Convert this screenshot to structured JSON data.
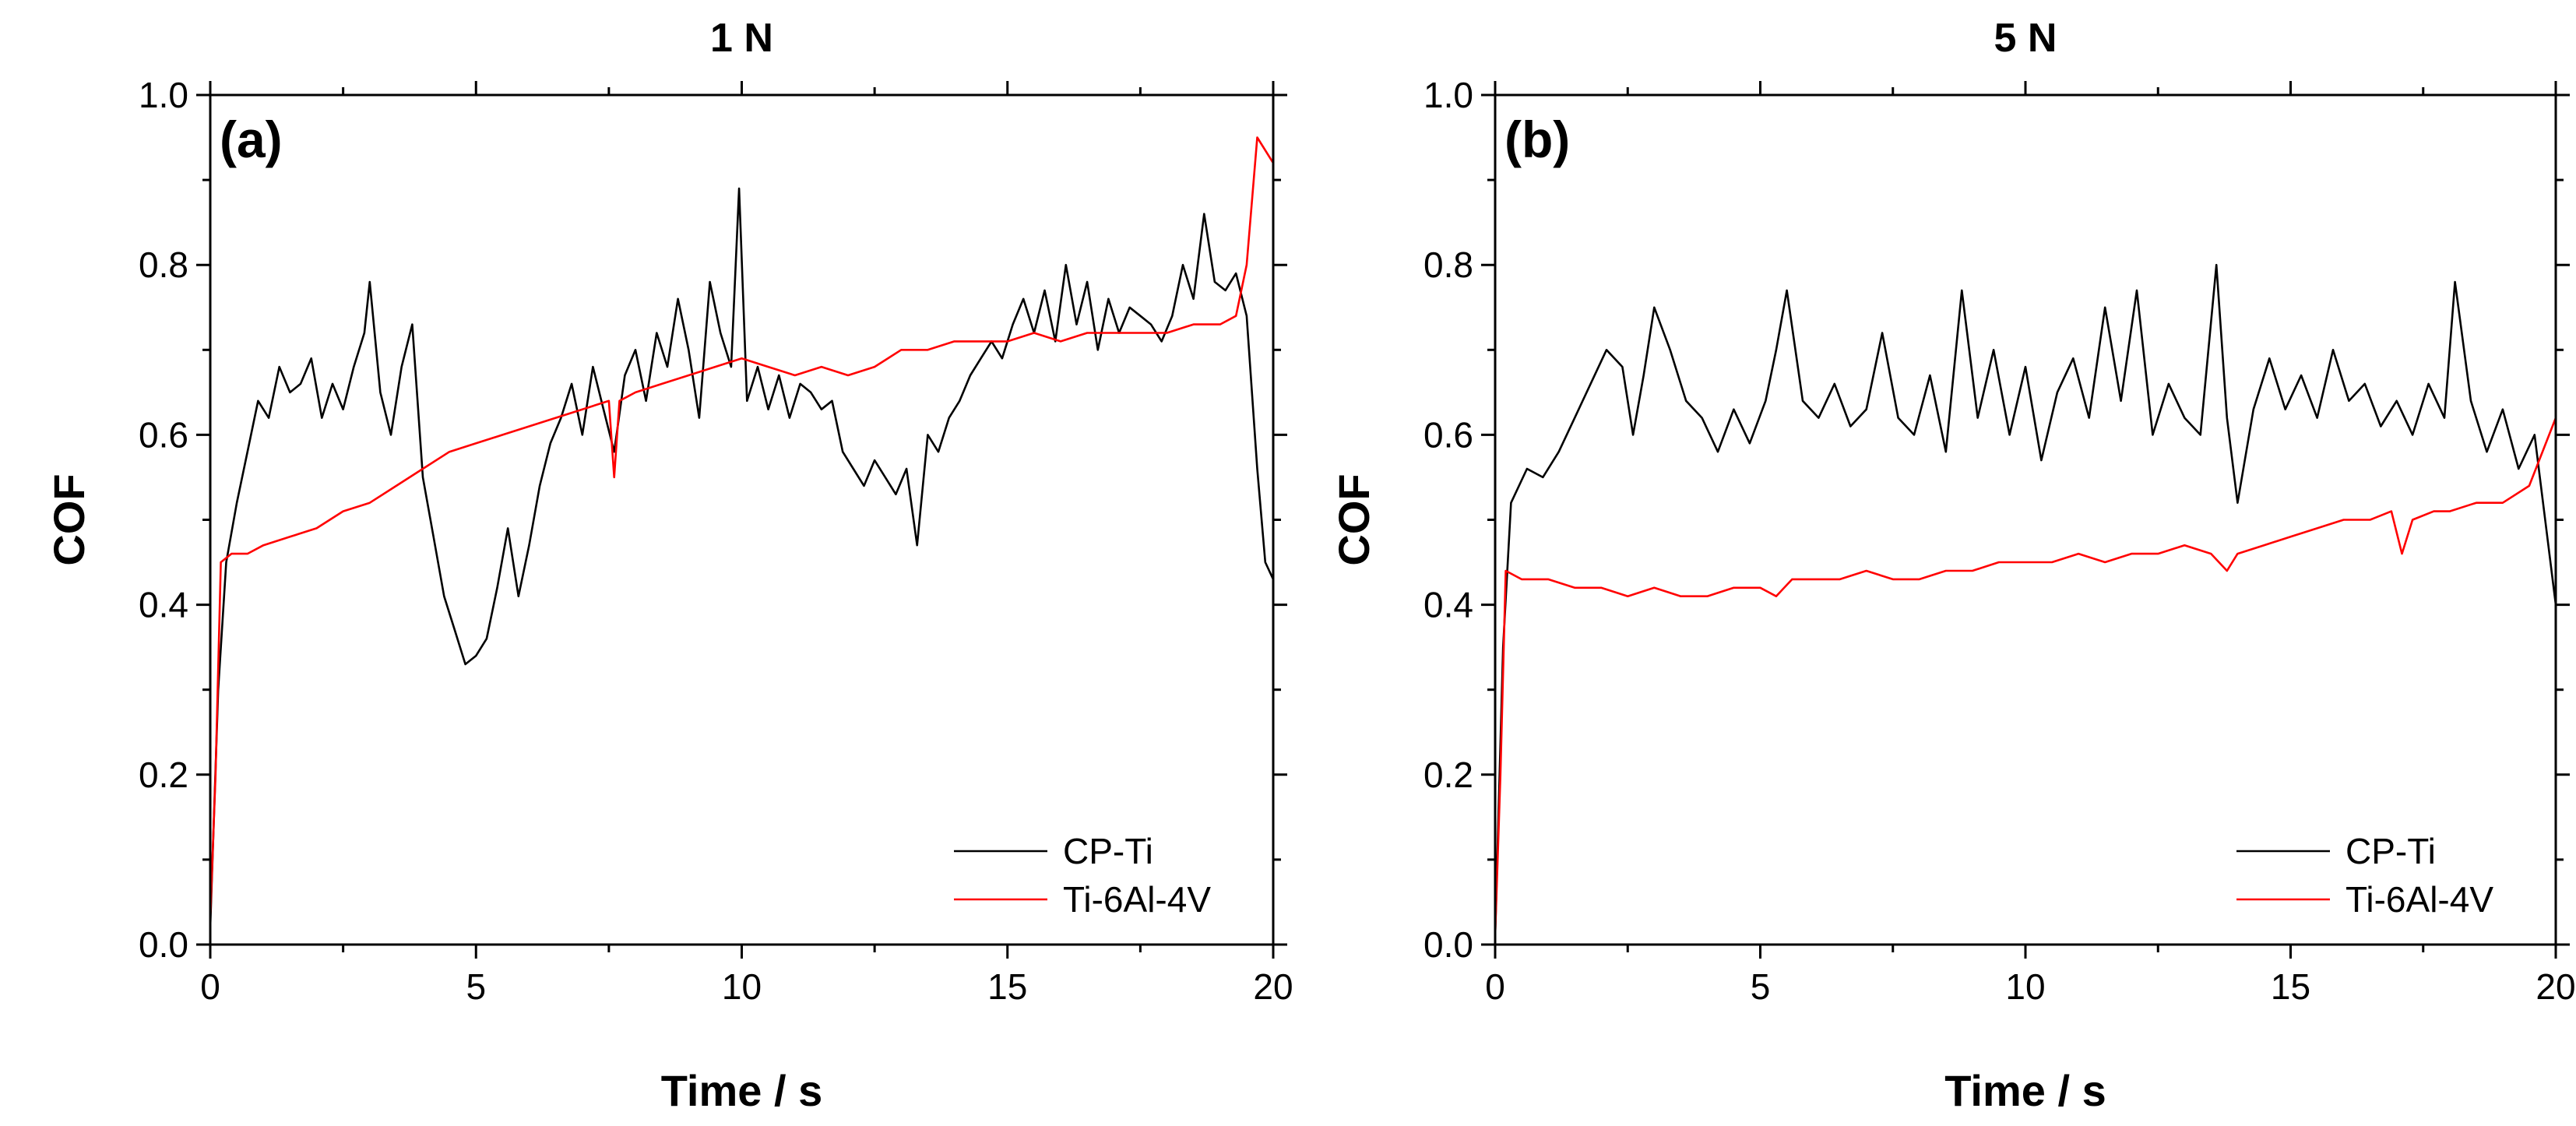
{
  "chart_data": [
    {
      "type": "line",
      "title": "1 N",
      "panel_label": "(a)",
      "xlabel": "Time / s",
      "ylabel": "COF",
      "xlim": [
        0,
        20
      ],
      "ylim": [
        0,
        1.0
      ],
      "xticks": [
        "0",
        "5",
        "10",
        "15",
        "20"
      ],
      "yticks": [
        "0.0",
        "0.2",
        "0.4",
        "0.6",
        "0.8",
        "1.0"
      ],
      "legend": [
        "CP-Ti",
        "Ti-6Al-4V"
      ],
      "legend_position": "bottom-right",
      "series": [
        {
          "name": "CP-Ti",
          "color": "#000000",
          "points": [
            [
              0,
              0.02
            ],
            [
              0.15,
              0.3
            ],
            [
              0.3,
              0.45
            ],
            [
              0.5,
              0.52
            ],
            [
              0.7,
              0.58
            ],
            [
              0.9,
              0.64
            ],
            [
              1.1,
              0.62
            ],
            [
              1.3,
              0.68
            ],
            [
              1.5,
              0.65
            ],
            [
              1.7,
              0.66
            ],
            [
              1.9,
              0.69
            ],
            [
              2.1,
              0.62
            ],
            [
              2.3,
              0.66
            ],
            [
              2.5,
              0.63
            ],
            [
              2.7,
              0.68
            ],
            [
              2.9,
              0.72
            ],
            [
              3.0,
              0.78
            ],
            [
              3.2,
              0.65
            ],
            [
              3.4,
              0.6
            ],
            [
              3.6,
              0.68
            ],
            [
              3.8,
              0.73
            ],
            [
              4.0,
              0.55
            ],
            [
              4.2,
              0.48
            ],
            [
              4.4,
              0.41
            ],
            [
              4.6,
              0.37
            ],
            [
              4.8,
              0.33
            ],
            [
              5.0,
              0.34
            ],
            [
              5.2,
              0.36
            ],
            [
              5.4,
              0.42
            ],
            [
              5.6,
              0.49
            ],
            [
              5.8,
              0.41
            ],
            [
              6.0,
              0.47
            ],
            [
              6.2,
              0.54
            ],
            [
              6.4,
              0.59
            ],
            [
              6.6,
              0.62
            ],
            [
              6.8,
              0.66
            ],
            [
              7.0,
              0.6
            ],
            [
              7.2,
              0.68
            ],
            [
              7.4,
              0.63
            ],
            [
              7.6,
              0.58
            ],
            [
              7.8,
              0.67
            ],
            [
              8.0,
              0.7
            ],
            [
              8.2,
              0.64
            ],
            [
              8.4,
              0.72
            ],
            [
              8.6,
              0.68
            ],
            [
              8.8,
              0.76
            ],
            [
              9.0,
              0.7
            ],
            [
              9.2,
              0.62
            ],
            [
              9.4,
              0.78
            ],
            [
              9.6,
              0.72
            ],
            [
              9.8,
              0.68
            ],
            [
              9.95,
              0.89
            ],
            [
              10.1,
              0.64
            ],
            [
              10.3,
              0.68
            ],
            [
              10.5,
              0.63
            ],
            [
              10.7,
              0.67
            ],
            [
              10.9,
              0.62
            ],
            [
              11.1,
              0.66
            ],
            [
              11.3,
              0.65
            ],
            [
              11.5,
              0.63
            ],
            [
              11.7,
              0.64
            ],
            [
              11.9,
              0.58
            ],
            [
              12.1,
              0.56
            ],
            [
              12.3,
              0.54
            ],
            [
              12.5,
              0.57
            ],
            [
              12.7,
              0.55
            ],
            [
              12.9,
              0.53
            ],
            [
              13.1,
              0.56
            ],
            [
              13.3,
              0.47
            ],
            [
              13.5,
              0.6
            ],
            [
              13.7,
              0.58
            ],
            [
              13.9,
              0.62
            ],
            [
              14.1,
              0.64
            ],
            [
              14.3,
              0.67
            ],
            [
              14.5,
              0.69
            ],
            [
              14.7,
              0.71
            ],
            [
              14.9,
              0.69
            ],
            [
              15.1,
              0.73
            ],
            [
              15.3,
              0.76
            ],
            [
              15.5,
              0.72
            ],
            [
              15.7,
              0.77
            ],
            [
              15.9,
              0.71
            ],
            [
              16.1,
              0.8
            ],
            [
              16.3,
              0.73
            ],
            [
              16.5,
              0.78
            ],
            [
              16.7,
              0.7
            ],
            [
              16.9,
              0.76
            ],
            [
              17.1,
              0.72
            ],
            [
              17.3,
              0.75
            ],
            [
              17.5,
              0.74
            ],
            [
              17.7,
              0.73
            ],
            [
              17.9,
              0.71
            ],
            [
              18.1,
              0.74
            ],
            [
              18.3,
              0.8
            ],
            [
              18.5,
              0.76
            ],
            [
              18.7,
              0.86
            ],
            [
              18.9,
              0.78
            ],
            [
              19.1,
              0.77
            ],
            [
              19.3,
              0.79
            ],
            [
              19.5,
              0.74
            ],
            [
              19.7,
              0.56
            ],
            [
              19.85,
              0.45
            ],
            [
              20.0,
              0.43
            ]
          ]
        },
        {
          "name": "Ti-6Al-4V",
          "color": "#ff0000",
          "points": [
            [
              0,
              0.03
            ],
            [
              0.1,
              0.2
            ],
            [
              0.2,
              0.45
            ],
            [
              0.4,
              0.46
            ],
            [
              0.7,
              0.46
            ],
            [
              1.0,
              0.47
            ],
            [
              1.5,
              0.48
            ],
            [
              2.0,
              0.49
            ],
            [
              2.5,
              0.51
            ],
            [
              3.0,
              0.52
            ],
            [
              3.5,
              0.54
            ],
            [
              4.0,
              0.56
            ],
            [
              4.5,
              0.58
            ],
            [
              5.0,
              0.59
            ],
            [
              5.5,
              0.6
            ],
            [
              6.0,
              0.61
            ],
            [
              6.5,
              0.62
            ],
            [
              7.0,
              0.63
            ],
            [
              7.5,
              0.64
            ],
            [
              7.6,
              0.55
            ],
            [
              7.7,
              0.64
            ],
            [
              8.0,
              0.65
            ],
            [
              8.5,
              0.66
            ],
            [
              9.0,
              0.67
            ],
            [
              9.5,
              0.68
            ],
            [
              10.0,
              0.69
            ],
            [
              10.5,
              0.68
            ],
            [
              11.0,
              0.67
            ],
            [
              11.5,
              0.68
            ],
            [
              12.0,
              0.67
            ],
            [
              12.5,
              0.68
            ],
            [
              13.0,
              0.7
            ],
            [
              13.5,
              0.7
            ],
            [
              14.0,
              0.71
            ],
            [
              14.5,
              0.71
            ],
            [
              15.0,
              0.71
            ],
            [
              15.5,
              0.72
            ],
            [
              16.0,
              0.71
            ],
            [
              16.5,
              0.72
            ],
            [
              17.0,
              0.72
            ],
            [
              17.5,
              0.72
            ],
            [
              18.0,
              0.72
            ],
            [
              18.5,
              0.73
            ],
            [
              19.0,
              0.73
            ],
            [
              19.3,
              0.74
            ],
            [
              19.5,
              0.8
            ],
            [
              19.7,
              0.95
            ],
            [
              20.0,
              0.92
            ]
          ]
        }
      ]
    },
    {
      "type": "line",
      "title": "5 N",
      "panel_label": "(b)",
      "xlabel": "Time / s",
      "ylabel": "COF",
      "xlim": [
        0,
        20
      ],
      "ylim": [
        0,
        1.0
      ],
      "xticks": [
        "0",
        "5",
        "10",
        "15",
        "20"
      ],
      "yticks": [
        "0.0",
        "0.2",
        "0.4",
        "0.6",
        "0.8",
        "1.0"
      ],
      "legend": [
        "CP-Ti",
        "Ti-6Al-4V"
      ],
      "legend_position": "bottom-right",
      "series": [
        {
          "name": "CP-Ti",
          "color": "#000000",
          "points": [
            [
              0,
              0.01
            ],
            [
              0.15,
              0.35
            ],
            [
              0.3,
              0.52
            ],
            [
              0.6,
              0.56
            ],
            [
              0.9,
              0.55
            ],
            [
              1.2,
              0.58
            ],
            [
              1.5,
              0.62
            ],
            [
              1.8,
              0.66
            ],
            [
              2.1,
              0.7
            ],
            [
              2.4,
              0.68
            ],
            [
              2.6,
              0.6
            ],
            [
              2.8,
              0.67
            ],
            [
              3.0,
              0.75
            ],
            [
              3.3,
              0.7
            ],
            [
              3.6,
              0.64
            ],
            [
              3.9,
              0.62
            ],
            [
              4.2,
              0.58
            ],
            [
              4.5,
              0.63
            ],
            [
              4.8,
              0.59
            ],
            [
              5.1,
              0.64
            ],
            [
              5.3,
              0.7
            ],
            [
              5.5,
              0.77
            ],
            [
              5.8,
              0.64
            ],
            [
              6.1,
              0.62
            ],
            [
              6.4,
              0.66
            ],
            [
              6.7,
              0.61
            ],
            [
              7.0,
              0.63
            ],
            [
              7.3,
              0.72
            ],
            [
              7.6,
              0.62
            ],
            [
              7.9,
              0.6
            ],
            [
              8.2,
              0.67
            ],
            [
              8.5,
              0.58
            ],
            [
              8.8,
              0.77
            ],
            [
              9.1,
              0.62
            ],
            [
              9.4,
              0.7
            ],
            [
              9.7,
              0.6
            ],
            [
              10.0,
              0.68
            ],
            [
              10.3,
              0.57
            ],
            [
              10.6,
              0.65
            ],
            [
              10.9,
              0.69
            ],
            [
              11.2,
              0.62
            ],
            [
              11.5,
              0.75
            ],
            [
              11.8,
              0.64
            ],
            [
              12.1,
              0.77
            ],
            [
              12.4,
              0.6
            ],
            [
              12.7,
              0.66
            ],
            [
              13.0,
              0.62
            ],
            [
              13.3,
              0.6
            ],
            [
              13.6,
              0.8
            ],
            [
              13.8,
              0.62
            ],
            [
              14.0,
              0.52
            ],
            [
              14.3,
              0.63
            ],
            [
              14.6,
              0.69
            ],
            [
              14.9,
              0.63
            ],
            [
              15.2,
              0.67
            ],
            [
              15.5,
              0.62
            ],
            [
              15.8,
              0.7
            ],
            [
              16.1,
              0.64
            ],
            [
              16.4,
              0.66
            ],
            [
              16.7,
              0.61
            ],
            [
              17.0,
              0.64
            ],
            [
              17.3,
              0.6
            ],
            [
              17.6,
              0.66
            ],
            [
              17.9,
              0.62
            ],
            [
              18.1,
              0.78
            ],
            [
              18.4,
              0.64
            ],
            [
              18.7,
              0.58
            ],
            [
              19.0,
              0.63
            ],
            [
              19.3,
              0.56
            ],
            [
              19.6,
              0.6
            ],
            [
              19.8,
              0.5
            ],
            [
              20.0,
              0.4
            ]
          ]
        },
        {
          "name": "Ti-6Al-4V",
          "color": "#ff0000",
          "points": [
            [
              0,
              0.01
            ],
            [
              0.1,
              0.2
            ],
            [
              0.2,
              0.44
            ],
            [
              0.5,
              0.43
            ],
            [
              1.0,
              0.43
            ],
            [
              1.5,
              0.42
            ],
            [
              2.0,
              0.42
            ],
            [
              2.5,
              0.41
            ],
            [
              3.0,
              0.42
            ],
            [
              3.5,
              0.41
            ],
            [
              4.0,
              0.41
            ],
            [
              4.5,
              0.42
            ],
            [
              5.0,
              0.42
            ],
            [
              5.3,
              0.41
            ],
            [
              5.6,
              0.43
            ],
            [
              6.0,
              0.43
            ],
            [
              6.5,
              0.43
            ],
            [
              7.0,
              0.44
            ],
            [
              7.5,
              0.43
            ],
            [
              8.0,
              0.43
            ],
            [
              8.5,
              0.44
            ],
            [
              9.0,
              0.44
            ],
            [
              9.5,
              0.45
            ],
            [
              10.0,
              0.45
            ],
            [
              10.5,
              0.45
            ],
            [
              11.0,
              0.46
            ],
            [
              11.5,
              0.45
            ],
            [
              12.0,
              0.46
            ],
            [
              12.5,
              0.46
            ],
            [
              13.0,
              0.47
            ],
            [
              13.5,
              0.46
            ],
            [
              13.8,
              0.44
            ],
            [
              14.0,
              0.46
            ],
            [
              14.5,
              0.47
            ],
            [
              15.0,
              0.48
            ],
            [
              15.5,
              0.49
            ],
            [
              16.0,
              0.5
            ],
            [
              16.5,
              0.5
            ],
            [
              16.9,
              0.51
            ],
            [
              17.1,
              0.46
            ],
            [
              17.3,
              0.5
            ],
            [
              17.7,
              0.51
            ],
            [
              18.0,
              0.51
            ],
            [
              18.5,
              0.52
            ],
            [
              19.0,
              0.52
            ],
            [
              19.5,
              0.54
            ],
            [
              20.0,
              0.62
            ]
          ]
        }
      ]
    }
  ]
}
